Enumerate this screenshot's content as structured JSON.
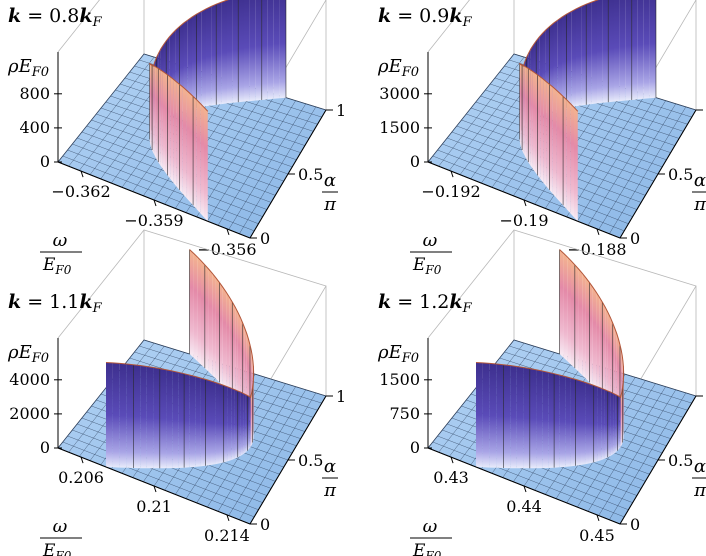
{
  "figure": {
    "z_label": "ρE",
    "z_label_sub": "F0",
    "x_label_num": "ω",
    "x_label_den": "E",
    "x_label_den_sub": "F0",
    "y_label_num": "α",
    "y_label_den": "π"
  },
  "colors": {
    "floor": "#9ec3ec",
    "grid": "#2c3e5a",
    "ridge_pink": "#e8a3b8",
    "ridge_blue": "#4a3c9e",
    "ridge_orange": "#f2b98a"
  },
  "chart_data": [
    {
      "type": "surface3d",
      "title_k": "k",
      "title_eq": " = 0.8",
      "title_kf": "k",
      "title_kf_sub": "F",
      "x_ticks": [
        "−0.362",
        "−0.359",
        "−0.356"
      ],
      "y_ticks": [
        "0",
        "0.5",
        "1"
      ],
      "z_ticks": [
        "800",
        "400",
        "0"
      ],
      "xlim": [
        -0.3635,
        -0.3555
      ],
      "ylim": [
        0,
        1
      ],
      "zlim": [
        0,
        800
      ],
      "ridge_shape": "u-open-back"
    },
    {
      "type": "surface3d",
      "title_k": "k",
      "title_eq": " = 0.9",
      "title_kf": "k",
      "title_kf_sub": "F",
      "x_ticks": [
        "−0.192",
        "−0.19",
        "−0.188"
      ],
      "y_ticks": [
        "0",
        "0.5",
        "1"
      ],
      "z_ticks": [
        "3000",
        "1500",
        "0"
      ],
      "xlim": [
        -0.1925,
        -0.1875
      ],
      "ylim": [
        0,
        1
      ],
      "zlim": [
        0,
        3000
      ],
      "ridge_shape": "u-open-back"
    },
    {
      "type": "surface3d",
      "title_k": "k",
      "title_eq": " = 1.1",
      "title_kf": "k",
      "title_kf_sub": "F",
      "x_ticks": [
        "0.206",
        "0.21",
        "0.214"
      ],
      "y_ticks": [
        "0",
        "0.5",
        "1"
      ],
      "z_ticks": [
        "4000",
        "2000",
        "0"
      ],
      "xlim": [
        0.2055,
        0.2145
      ],
      "ylim": [
        0,
        1
      ],
      "zlim": [
        0,
        4000
      ],
      "ridge_shape": "u-open-front"
    },
    {
      "type": "surface3d",
      "title_k": "k",
      "title_eq": " = 1.2",
      "title_kf": "k",
      "title_kf_sub": "F",
      "x_ticks": [
        "0.43",
        "0.44",
        "0.45"
      ],
      "y_ticks": [
        "0",
        "0.5",
        "1"
      ],
      "z_ticks": [
        "1500",
        "750",
        "0"
      ],
      "xlim": [
        0.428,
        0.452
      ],
      "ylim": [
        0,
        1
      ],
      "zlim": [
        0,
        1500
      ],
      "ridge_shape": "u-open-front"
    }
  ]
}
